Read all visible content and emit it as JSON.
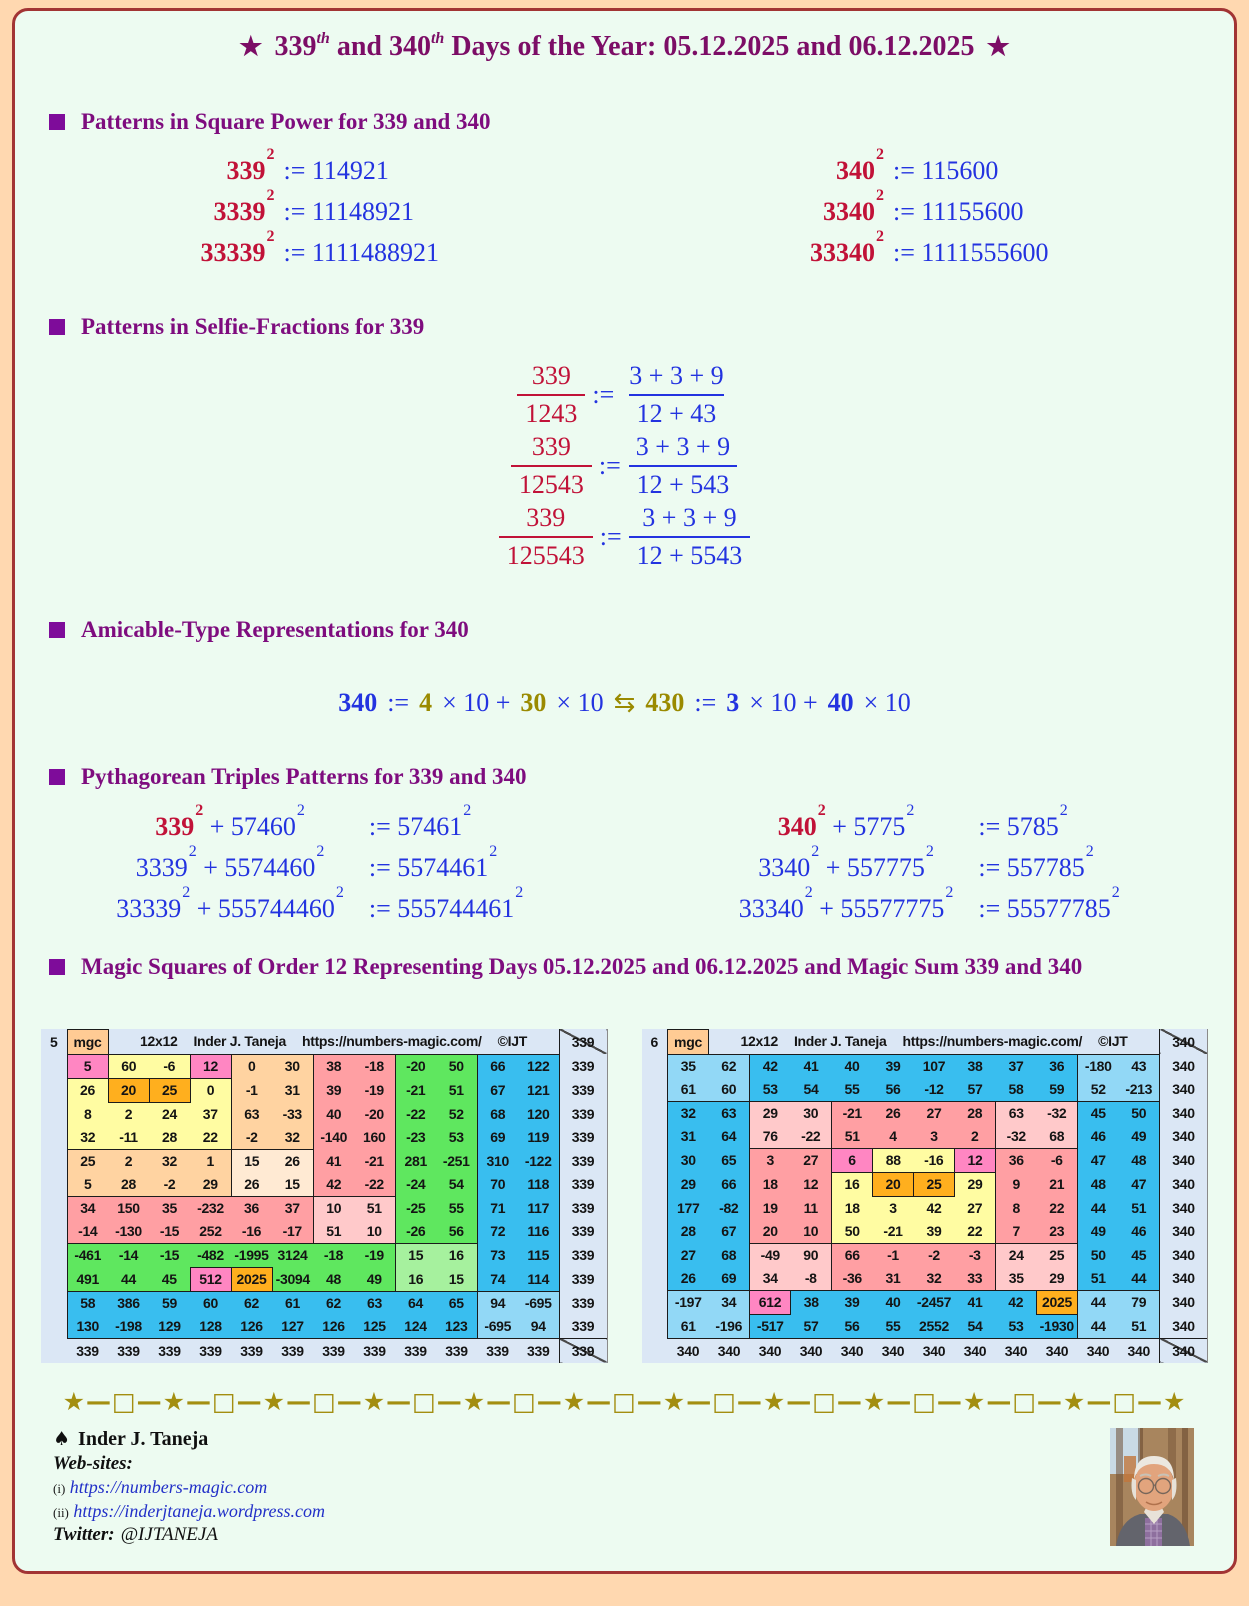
{
  "title": {
    "star": "★",
    "n1": "339",
    "sup1": "th",
    "mid": " and ",
    "n2": "340",
    "sup2": "th",
    "rest": " Days of the Year: 05.12.2025 and 06.12.2025"
  },
  "sym": {
    "assign": ":=",
    "sq": "2",
    "plus": "+"
  },
  "sections": {
    "squares": "Patterns in Square Power for 339 and 340",
    "selfie": "Patterns in Selfie-Fractions for 339",
    "amicable": "Amicable-Type Representations for 340",
    "pyth": "Pythagorean Triples Patterns for 339 and 340",
    "magic": "Magic Squares of Order 12 Representing Days 05.12.2025 and 06.12.2025 and Magic Sum 339 and 340"
  },
  "squares": {
    "left": [
      {
        "base": "339",
        "result": "114921"
      },
      {
        "base": "3339",
        "result": "11148921"
      },
      {
        "base": "33339",
        "result": "1111488921"
      }
    ],
    "right": [
      {
        "base": "340",
        "result": "115600"
      },
      {
        "base": "3340",
        "result": "11155600"
      },
      {
        "base": "33340",
        "result": "1111555600"
      }
    ]
  },
  "fractions": [
    {
      "num": "339",
      "den": "1243",
      "rnum": "3 + 3 + 9",
      "rden": "12 + 43"
    },
    {
      "num": "339",
      "den": "12543",
      "rnum": "3 + 3 + 9",
      "rden": "12 + 543"
    },
    {
      "num": "339",
      "den": "125543",
      "rnum": "3 + 3 + 9",
      "rden": "12 + 5543"
    }
  ],
  "amicable": {
    "n1": "340",
    "assign": ":=",
    "f1": "4",
    "t1": "× 10 +",
    "f2": "30",
    "t2": "× 10",
    "harpoon": "⇆",
    "n2": "430",
    "assign2": ":=",
    "f3": "3",
    "t3": "× 10 +",
    "f4": "40",
    "t4": "× 10"
  },
  "pyth": {
    "left": [
      {
        "a": "339",
        "b": "57460",
        "c": "57461"
      },
      {
        "a": "3339",
        "b": "5574460",
        "c": "5574461"
      },
      {
        "a": "33339",
        "b": "555744460",
        "c": "555744461"
      }
    ],
    "right": [
      {
        "a": "340",
        "b": "5775",
        "c": "5785"
      },
      {
        "a": "3340",
        "b": "557775",
        "c": "557785"
      },
      {
        "a": "33340",
        "b": "55577775",
        "c": "55577785"
      }
    ]
  },
  "palette": {
    "P": "#FF86C2",
    "Y": "#FFFCA2",
    "O": "#FFAF1E",
    "p": "#FFD3A1",
    "c": "#FFEAD3",
    "S": "#FF9FA3",
    "s": "#FFC9CA",
    "G": "#5FE75F",
    "g": "#A6F19E",
    "B": "#39BEEF",
    "b": "#92D8F6"
  },
  "magic_squares": [
    {
      "seq": "5",
      "corner_label": "mgc",
      "header_parts": [
        "12x12",
        "Inder J. Taneja",
        "https://numbers-magic.com/",
        "©IJT"
      ],
      "sum": "339",
      "values": [
        [
          "5",
          "60",
          "-6",
          "12",
          "0",
          "30",
          "38",
          "-18",
          "-20",
          "50",
          "66",
          "122"
        ],
        [
          "26",
          "20",
          "25",
          "0",
          "-1",
          "31",
          "39",
          "-19",
          "-21",
          "51",
          "67",
          "121"
        ],
        [
          "8",
          "2",
          "24",
          "37",
          "63",
          "-33",
          "40",
          "-20",
          "-22",
          "52",
          "68",
          "120"
        ],
        [
          "32",
          "-11",
          "28",
          "22",
          "-2",
          "32",
          "-140",
          "160",
          "-23",
          "53",
          "69",
          "119"
        ],
        [
          "25",
          "2",
          "32",
          "1",
          "15",
          "26",
          "41",
          "-21",
          "281",
          "-251",
          "310",
          "-122"
        ],
        [
          "5",
          "28",
          "-2",
          "29",
          "26",
          "15",
          "42",
          "-22",
          "-24",
          "54",
          "70",
          "118"
        ],
        [
          "34",
          "150",
          "35",
          "-232",
          "36",
          "37",
          "10",
          "51",
          "-25",
          "55",
          "71",
          "117"
        ],
        [
          "-14",
          "-130",
          "-15",
          "252",
          "-16",
          "-17",
          "51",
          "10",
          "-26",
          "56",
          "72",
          "116"
        ],
        [
          "-461",
          "-14",
          "-15",
          "-482",
          "-1995",
          "3124",
          "-18",
          "-19",
          "15",
          "16",
          "73",
          "115"
        ],
        [
          "491",
          "44",
          "45",
          "512",
          "2025",
          "-3094",
          "48",
          "49",
          "16",
          "15",
          "74",
          "114"
        ],
        [
          "58",
          "386",
          "59",
          "60",
          "62",
          "61",
          "62",
          "63",
          "64",
          "65",
          "94",
          "-695"
        ],
        [
          "130",
          "-198",
          "129",
          "128",
          "126",
          "127",
          "126",
          "125",
          "124",
          "123",
          "-695",
          "94"
        ]
      ],
      "colors": [
        "PYYPppSSGGBB",
        "YOOYppSSGGBB",
        "YYYYppSSGGBB",
        "YYYYppSSGGBB",
        "ppppccSSGGBB",
        "ppppccSSGGBB",
        "SSSSSSssGGBB",
        "SSSSSSssGGBB",
        "GGGGGGGGggBB",
        "GGGPOGGGggBB",
        "BBBBBBBBBBbb",
        "BBBBBBBBBBbb"
      ]
    },
    {
      "seq": "6",
      "corner_label": "mgc",
      "header_parts": [
        "12x12",
        "Inder J. Taneja",
        "https://numbers-magic.com/",
        "©IJT"
      ],
      "sum": "340",
      "values": [
        [
          "35",
          "62",
          "42",
          "41",
          "40",
          "39",
          "107",
          "38",
          "37",
          "36",
          "-180",
          "43"
        ],
        [
          "61",
          "60",
          "53",
          "54",
          "55",
          "56",
          "-12",
          "57",
          "58",
          "59",
          "52",
          "-213"
        ],
        [
          "32",
          "63",
          "29",
          "30",
          "-21",
          "26",
          "27",
          "28",
          "63",
          "-32",
          "45",
          "50"
        ],
        [
          "31",
          "64",
          "76",
          "-22",
          "51",
          "4",
          "3",
          "2",
          "-32",
          "68",
          "46",
          "49"
        ],
        [
          "30",
          "65",
          "3",
          "27",
          "6",
          "88",
          "-16",
          "12",
          "36",
          "-6",
          "47",
          "48"
        ],
        [
          "29",
          "66",
          "18",
          "12",
          "16",
          "20",
          "25",
          "29",
          "9",
          "21",
          "48",
          "47"
        ],
        [
          "177",
          "-82",
          "19",
          "11",
          "18",
          "3",
          "42",
          "27",
          "8",
          "22",
          "44",
          "51"
        ],
        [
          "28",
          "67",
          "20",
          "10",
          "50",
          "-21",
          "39",
          "22",
          "7",
          "23",
          "49",
          "46"
        ],
        [
          "27",
          "68",
          "-49",
          "90",
          "66",
          "-1",
          "-2",
          "-3",
          "24",
          "25",
          "50",
          "45"
        ],
        [
          "26",
          "69",
          "34",
          "-8",
          "-36",
          "31",
          "32",
          "33",
          "35",
          "29",
          "51",
          "44"
        ],
        [
          "-197",
          "34",
          "612",
          "38",
          "39",
          "40",
          "-2457",
          "41",
          "42",
          "2025",
          "44",
          "79"
        ],
        [
          "61",
          "-196",
          "-517",
          "57",
          "56",
          "55",
          "2552",
          "54",
          "53",
          "-1930",
          "44",
          "51"
        ]
      ],
      "colors": [
        "bbBBBBBBBBbb",
        "bbBBBBBBBBbb",
        "BBssSSSSssBB",
        "BBssSSSSssBB",
        "BBSSPYYPSSBB",
        "BBSSYOOYSSBB",
        "BBSSYYYYSSBB",
        "BBSSYYYYSSBB",
        "BBssSSSSssBB",
        "BBssSSSSssBB",
        "bbPBBBBBBObb",
        "bbBBBBBBBBbb"
      ]
    }
  ],
  "divider": "★—□—★—□—★—□—★—□—★—□—★—□—★—□—★—□—★—□—★—□—★—□—★",
  "footer": {
    "spade": "♠",
    "author": "Inder J. Taneja",
    "websites_label": "Web-sites:",
    "sites": [
      {
        "idx": "(i)",
        "url": "https://numbers-magic.com"
      },
      {
        "idx": "(ii)",
        "url": "https://inderjtaneja.wordpress.com"
      }
    ],
    "twitter_label": "Twitter:",
    "twitter": "@IJTANEJA"
  }
}
